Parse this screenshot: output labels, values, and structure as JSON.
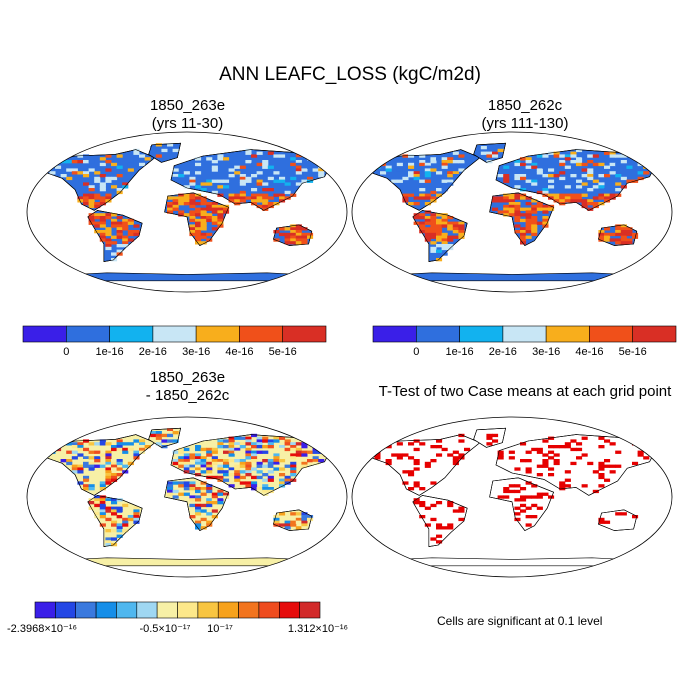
{
  "title": "ANN LEAFC_LOSS (kgC/m2d)",
  "panels": [
    {
      "id": "case1",
      "title_line1": "1850_263e",
      "title_line2": "(yrs 11-30)"
    },
    {
      "id": "case2",
      "title_line1": "1850_262c",
      "title_line2": "(yrs 111-130)"
    },
    {
      "id": "diff",
      "title_line1": "1850_263e",
      "title_line2": "- 1850_262c"
    },
    {
      "id": "ttest",
      "title_line1": "T-Test of two Case means at each grid point",
      "title_line2": ""
    }
  ],
  "colorbar_top": {
    "colors": [
      "#3a1fe8",
      "#2f6fde",
      "#12b2ef",
      "#c8e6f5",
      "#f8ae1c",
      "#f0501a",
      "#d92f25"
    ],
    "labels": [
      "0",
      "1e-16",
      "2e-16",
      "3e-16",
      "4e-16",
      "5e-16"
    ]
  },
  "colorbar_diff": {
    "colors": [
      "#3a1fe8",
      "#2447e5",
      "#3a79de",
      "#168ee8",
      "#4fb7ef",
      "#9fd7f2",
      "#f7f0a6",
      "#fde88a",
      "#f8c541",
      "#f7a21c",
      "#f2741e",
      "#ef4c1f",
      "#e60c0c",
      "#d22a2a"
    ],
    "labels": [
      "-2.3968×10⁻¹⁶",
      "-0.5×10⁻¹⁷",
      "10⁻¹⁷",
      "1.312×10⁻¹⁶"
    ]
  },
  "significance_note": "Cells are significant at 0.1 level",
  "colors": {
    "land_low": "#2f6fde",
    "land_high": "#f0501a",
    "diff_base": "#f7f0a6",
    "sig": "#e60000"
  }
}
